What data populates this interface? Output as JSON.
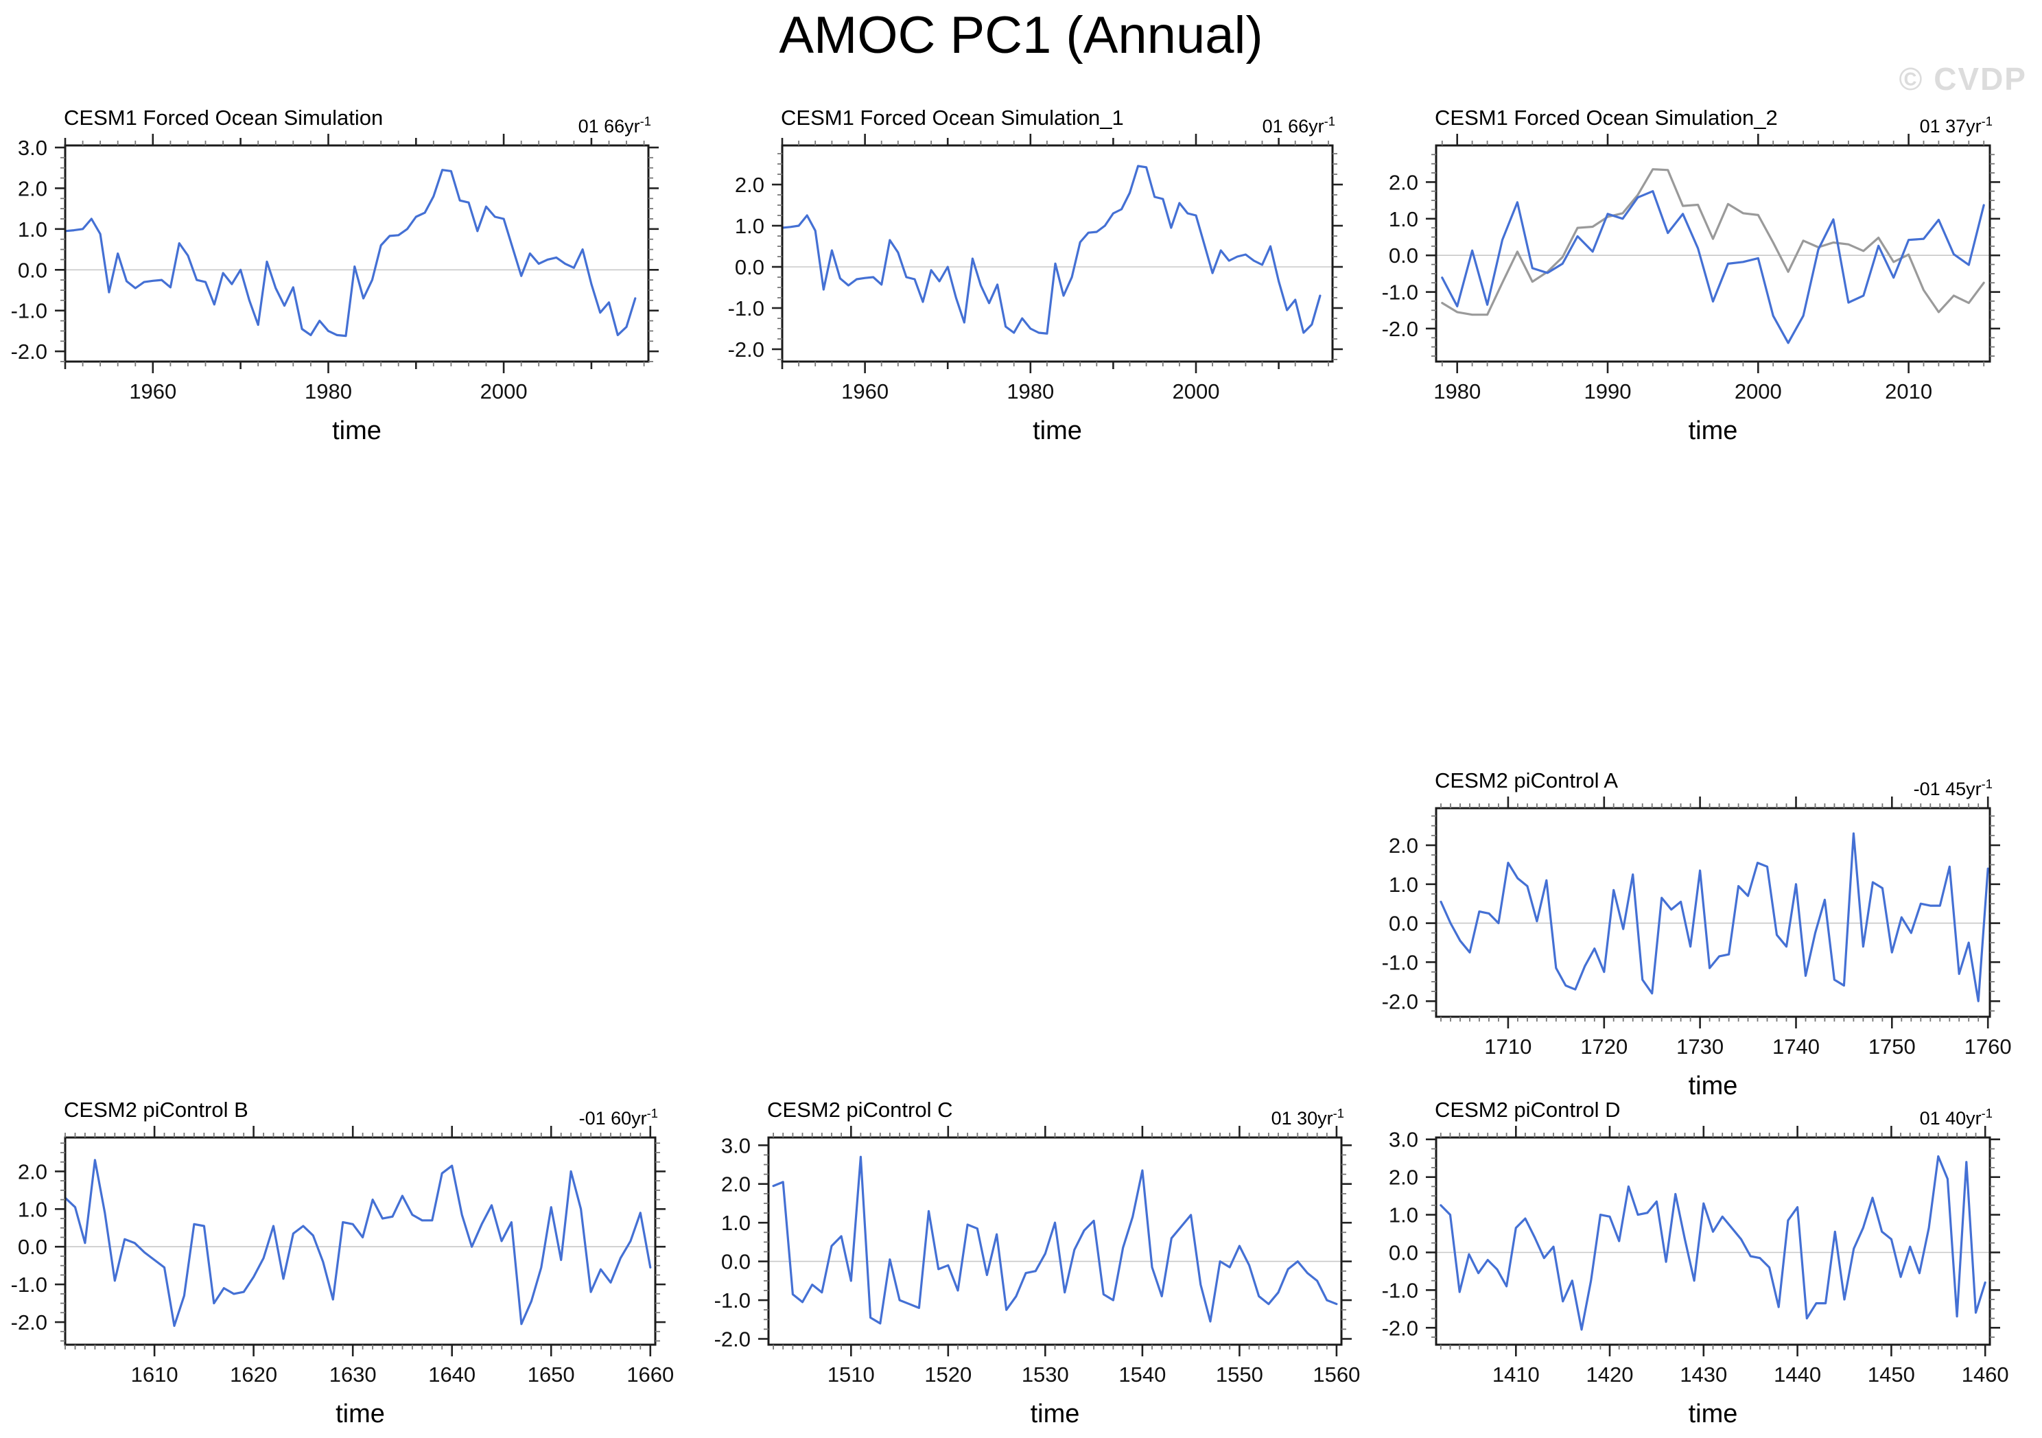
{
  "page": {
    "title": "AMOC PC1 (Annual)",
    "watermark": "© CVDP",
    "x_axis_label": "time"
  },
  "colors": {
    "line_blue": "#4470d4",
    "line_gray": "#9a9a9a",
    "zero_line": "#c8c8c8",
    "frame": "#1a1a1a",
    "watermark": "#dcdcdc"
  },
  "chart_data": [
    {
      "id": "cesm1-forced-ocean-simulation",
      "type": "line",
      "title": "CESM1 Forced Ocean Simulation",
      "corner_label": {
        "text": "01 66yr",
        "sup": "-1"
      },
      "xlabel": "time",
      "x_start": 1950,
      "xlim": [
        1950,
        2016.5
      ],
      "ylim": [
        -2.25,
        3.05
      ],
      "ytick_labels": [
        "3.0",
        "2.0",
        "1.0",
        "0.0",
        "-1.0",
        "-2.0"
      ],
      "xticks_labeled": [
        1960,
        1980,
        2000
      ],
      "x_minor_step": 2,
      "grid": false,
      "zero_line": true,
      "series": [
        {
          "name": "series-1",
          "color": "#4470d4",
          "values": [
            0.95,
            0.97,
            1.0,
            1.25,
            0.88,
            -0.55,
            0.4,
            -0.28,
            -0.45,
            -0.3,
            -0.27,
            -0.25,
            -0.43,
            0.65,
            0.35,
            -0.25,
            -0.3,
            -0.85,
            -0.08,
            -0.35,
            0.0,
            -0.75,
            -1.35,
            0.2,
            -0.45,
            -0.88,
            -0.43,
            -1.45,
            -1.6,
            -1.25,
            -1.5,
            -1.6,
            -1.62,
            0.08,
            -0.7,
            -0.25,
            0.6,
            0.83,
            0.85,
            1.0,
            1.3,
            1.4,
            1.8,
            2.45,
            2.42,
            1.7,
            1.65,
            0.95,
            1.55,
            1.3,
            1.25,
            0.55,
            -0.15,
            0.4,
            0.15,
            0.25,
            0.3,
            0.15,
            0.05,
            0.5,
            -0.35,
            -1.05,
            -0.8,
            -1.6,
            -1.4,
            -0.7
          ]
        }
      ]
    },
    {
      "id": "cesm1-forced-ocean-simulation-1",
      "type": "line",
      "title": "CESM1 Forced Ocean Simulation_1",
      "corner_label": {
        "text": "01 66yr",
        "sup": "-1"
      },
      "xlabel": "time",
      "x_start": 1950,
      "xlim": [
        1950,
        2016.5
      ],
      "ylim": [
        -2.3,
        2.95
      ],
      "ytick_labels": [
        "2.0",
        "1.0",
        "0.0",
        "-1.0",
        "-2.0"
      ],
      "xticks_labeled": [
        1960,
        1980,
        2000
      ],
      "x_minor_step": 2,
      "grid": false,
      "zero_line": true,
      "series": [
        {
          "name": "series-1",
          "color": "#4470d4",
          "values": [
            0.95,
            0.97,
            1.0,
            1.25,
            0.88,
            -0.55,
            0.4,
            -0.28,
            -0.45,
            -0.3,
            -0.27,
            -0.25,
            -0.43,
            0.65,
            0.35,
            -0.25,
            -0.3,
            -0.85,
            -0.08,
            -0.35,
            0.0,
            -0.75,
            -1.35,
            0.2,
            -0.45,
            -0.88,
            -0.43,
            -1.45,
            -1.6,
            -1.25,
            -1.5,
            -1.6,
            -1.62,
            0.08,
            -0.7,
            -0.25,
            0.6,
            0.83,
            0.85,
            1.0,
            1.3,
            1.4,
            1.8,
            2.45,
            2.42,
            1.7,
            1.65,
            0.95,
            1.55,
            1.3,
            1.25,
            0.55,
            -0.15,
            0.4,
            0.15,
            0.25,
            0.3,
            0.15,
            0.05,
            0.5,
            -0.35,
            -1.05,
            -0.8,
            -1.6,
            -1.4,
            -0.7
          ]
        }
      ]
    },
    {
      "id": "cesm1-forced-ocean-simulation-2",
      "type": "line",
      "title": "CESM1 Forced Ocean Simulation_2",
      "corner_label": {
        "text": "01 37yr",
        "sup": "-1"
      },
      "xlabel": "time",
      "x_start": 1979,
      "xlim": [
        1978.6,
        2015.4
      ],
      "ylim": [
        -2.9,
        3.0
      ],
      "ytick_labels": [
        "2.0",
        "1.0",
        "0.0",
        "-1.0",
        "-2.0"
      ],
      "xticks_labeled": [
        1980,
        1990,
        2000,
        2010
      ],
      "x_minor_step": 1,
      "grid": false,
      "zero_line": true,
      "series": [
        {
          "name": "series-2",
          "color": "#9a9a9a",
          "values": [
            -1.3,
            -1.55,
            -1.62,
            -1.62,
            -0.75,
            0.1,
            -0.72,
            -0.45,
            -0.05,
            0.75,
            0.78,
            1.05,
            1.15,
            1.65,
            2.35,
            2.33,
            1.35,
            1.38,
            0.45,
            1.4,
            1.15,
            1.1,
            0.35,
            -0.45,
            0.4,
            0.22,
            0.35,
            0.3,
            0.12,
            0.48,
            -0.18,
            0.02,
            -0.95,
            -1.55,
            -1.1,
            -1.3,
            -0.75
          ]
        },
        {
          "name": "series-1",
          "color": "#4470d4",
          "values": [
            -0.61,
            -1.39,
            0.13,
            -1.35,
            0.42,
            1.45,
            -0.35,
            -0.48,
            -0.23,
            0.52,
            0.1,
            1.13,
            1.0,
            1.58,
            1.75,
            0.61,
            1.13,
            0.19,
            -1.26,
            -0.23,
            -0.18,
            -0.08,
            -1.65,
            -2.39,
            -1.65,
            0.16,
            0.98,
            -1.29,
            -1.1,
            0.26,
            -0.61,
            0.42,
            0.45,
            0.97,
            0.03,
            -0.26,
            1.37
          ]
        }
      ]
    },
    {
      "id": "cesm2-picontrol-a",
      "type": "line",
      "title": "CESM2 piControl A",
      "corner_label": {
        "text": "-01 45yr",
        "sup": "-1"
      },
      "xlabel": "time",
      "x_start": 1703,
      "xlim": [
        1702.5,
        1760.2
      ],
      "ylim": [
        -2.4,
        2.95
      ],
      "ytick_labels": [
        "2.0",
        "1.0",
        "0.0",
        "-1.0",
        "-2.0"
      ],
      "xticks_labeled": [
        1710,
        1720,
        1730,
        1740,
        1750,
        1760
      ],
      "x_minor_step": 1,
      "grid": false,
      "zero_line": true,
      "series": [
        {
          "name": "series-1",
          "color": "#4470d4",
          "values": [
            0.55,
            0.0,
            -0.45,
            -0.75,
            0.3,
            0.25,
            0.0,
            1.55,
            1.15,
            0.95,
            0.05,
            1.1,
            -1.15,
            -1.6,
            -1.7,
            -1.1,
            -0.65,
            -1.25,
            0.85,
            -0.15,
            1.25,
            -1.45,
            -1.8,
            0.65,
            0.35,
            0.55,
            -0.6,
            1.35,
            -1.15,
            -0.85,
            -0.8,
            0.95,
            0.7,
            1.55,
            1.45,
            -0.3,
            -0.6,
            1.0,
            -1.35,
            -0.25,
            0.6,
            -1.45,
            -1.6,
            2.3,
            -0.6,
            1.05,
            0.9,
            -0.75,
            0.15,
            -0.25,
            0.5,
            0.45,
            0.45,
            1.45,
            -1.3,
            -0.5,
            -2.0,
            1.4
          ]
        }
      ]
    },
    {
      "id": "cesm2-picontrol-b",
      "type": "line",
      "title": "CESM2 piControl B",
      "corner_label": {
        "text": "-01 60yr",
        "sup": "-1"
      },
      "xlabel": "time",
      "x_start": 1601,
      "xlim": [
        1601,
        1660.5
      ],
      "ylim": [
        -2.6,
        2.9
      ],
      "ytick_labels": [
        "2.0",
        "1.0",
        "0.0",
        "-1.0",
        "-2.0"
      ],
      "xticks_labeled": [
        1610,
        1620,
        1630,
        1640,
        1650,
        1660
      ],
      "x_minor_step": 1,
      "grid": false,
      "zero_line": true,
      "series": [
        {
          "name": "series-1",
          "color": "#4470d4",
          "values": [
            1.3,
            1.05,
            0.1,
            2.3,
            0.9,
            -0.9,
            0.2,
            0.1,
            -0.15,
            -0.35,
            -0.55,
            -2.1,
            -1.3,
            0.6,
            0.55,
            -1.5,
            -1.1,
            -1.25,
            -1.2,
            -0.8,
            -0.3,
            0.55,
            -0.85,
            0.35,
            0.55,
            0.3,
            -0.4,
            -1.4,
            0.65,
            0.6,
            0.25,
            1.25,
            0.75,
            0.8,
            1.35,
            0.85,
            0.7,
            0.7,
            1.95,
            2.15,
            0.85,
            0.0,
            0.6,
            1.1,
            0.15,
            0.65,
            -2.05,
            -1.45,
            -0.55,
            1.05,
            -0.35,
            2.0,
            1.0,
            -1.2,
            -0.6,
            -0.95,
            -0.3,
            0.15,
            0.9,
            -0.55
          ]
        }
      ]
    },
    {
      "id": "cesm2-picontrol-c",
      "type": "line",
      "title": "CESM2 piControl C",
      "corner_label": {
        "text": "01 30yr",
        "sup": "-1"
      },
      "xlabel": "time",
      "x_start": 1502,
      "xlim": [
        1501.5,
        1560.5
      ],
      "ylim": [
        -2.15,
        3.2
      ],
      "ytick_labels": [
        "3.0",
        "2.0",
        "1.0",
        "0.0",
        "-1.0",
        "-2.0"
      ],
      "xticks_labeled": [
        1510,
        1520,
        1530,
        1540,
        1550,
        1560
      ],
      "x_minor_step": 1,
      "grid": false,
      "zero_line": true,
      "series": [
        {
          "name": "series-1",
          "color": "#4470d4",
          "values": [
            1.95,
            2.05,
            -0.85,
            -1.05,
            -0.6,
            -0.8,
            0.4,
            0.65,
            -0.5,
            2.7,
            -1.45,
            -1.6,
            0.05,
            -1.0,
            -1.1,
            -1.2,
            1.3,
            -0.2,
            -0.1,
            -0.75,
            0.95,
            0.85,
            -0.35,
            0.7,
            -1.25,
            -0.9,
            -0.3,
            -0.25,
            0.2,
            1.0,
            -0.8,
            0.3,
            0.8,
            1.05,
            -0.85,
            -1.0,
            0.35,
            1.15,
            2.35,
            -0.15,
            -0.9,
            0.6,
            0.9,
            1.2,
            -0.6,
            -1.55,
            0.0,
            -0.15,
            0.4,
            -0.1,
            -0.9,
            -1.1,
            -0.8,
            -0.2,
            0.0,
            -0.3,
            -0.5,
            -1.0,
            -1.1
          ]
        }
      ]
    },
    {
      "id": "cesm2-picontrol-d",
      "type": "line",
      "title": "CESM2 piControl D",
      "corner_label": {
        "text": "01 40yr",
        "sup": "-1"
      },
      "xlabel": "time",
      "x_start": 1402,
      "xlim": [
        1401.5,
        1460.5
      ],
      "ylim": [
        -2.45,
        3.05
      ],
      "ytick_labels": [
        "3.0",
        "2.0",
        "1.0",
        "0.0",
        "-1.0",
        "-2.0"
      ],
      "xticks_labeled": [
        1410,
        1420,
        1430,
        1440,
        1450,
        1460
      ],
      "x_minor_step": 1,
      "grid": false,
      "zero_line": true,
      "series": [
        {
          "name": "series-1",
          "color": "#4470d4",
          "values": [
            1.25,
            1.0,
            -1.05,
            -0.05,
            -0.55,
            -0.2,
            -0.45,
            -0.9,
            0.65,
            0.9,
            0.4,
            -0.15,
            0.15,
            -1.3,
            -0.75,
            -2.05,
            -0.75,
            1.0,
            0.95,
            0.3,
            1.75,
            1.0,
            1.05,
            1.35,
            -0.25,
            1.55,
            0.35,
            -0.75,
            1.3,
            0.55,
            0.95,
            0.65,
            0.35,
            -0.1,
            -0.15,
            -0.4,
            -1.45,
            0.85,
            1.2,
            -1.75,
            -1.35,
            -1.35,
            0.55,
            -1.25,
            0.1,
            0.65,
            1.45,
            0.55,
            0.35,
            -0.65,
            0.15,
            -0.55,
            0.65,
            2.55,
            1.95,
            -1.7,
            2.4,
            -1.6,
            -0.8
          ]
        }
      ]
    }
  ]
}
